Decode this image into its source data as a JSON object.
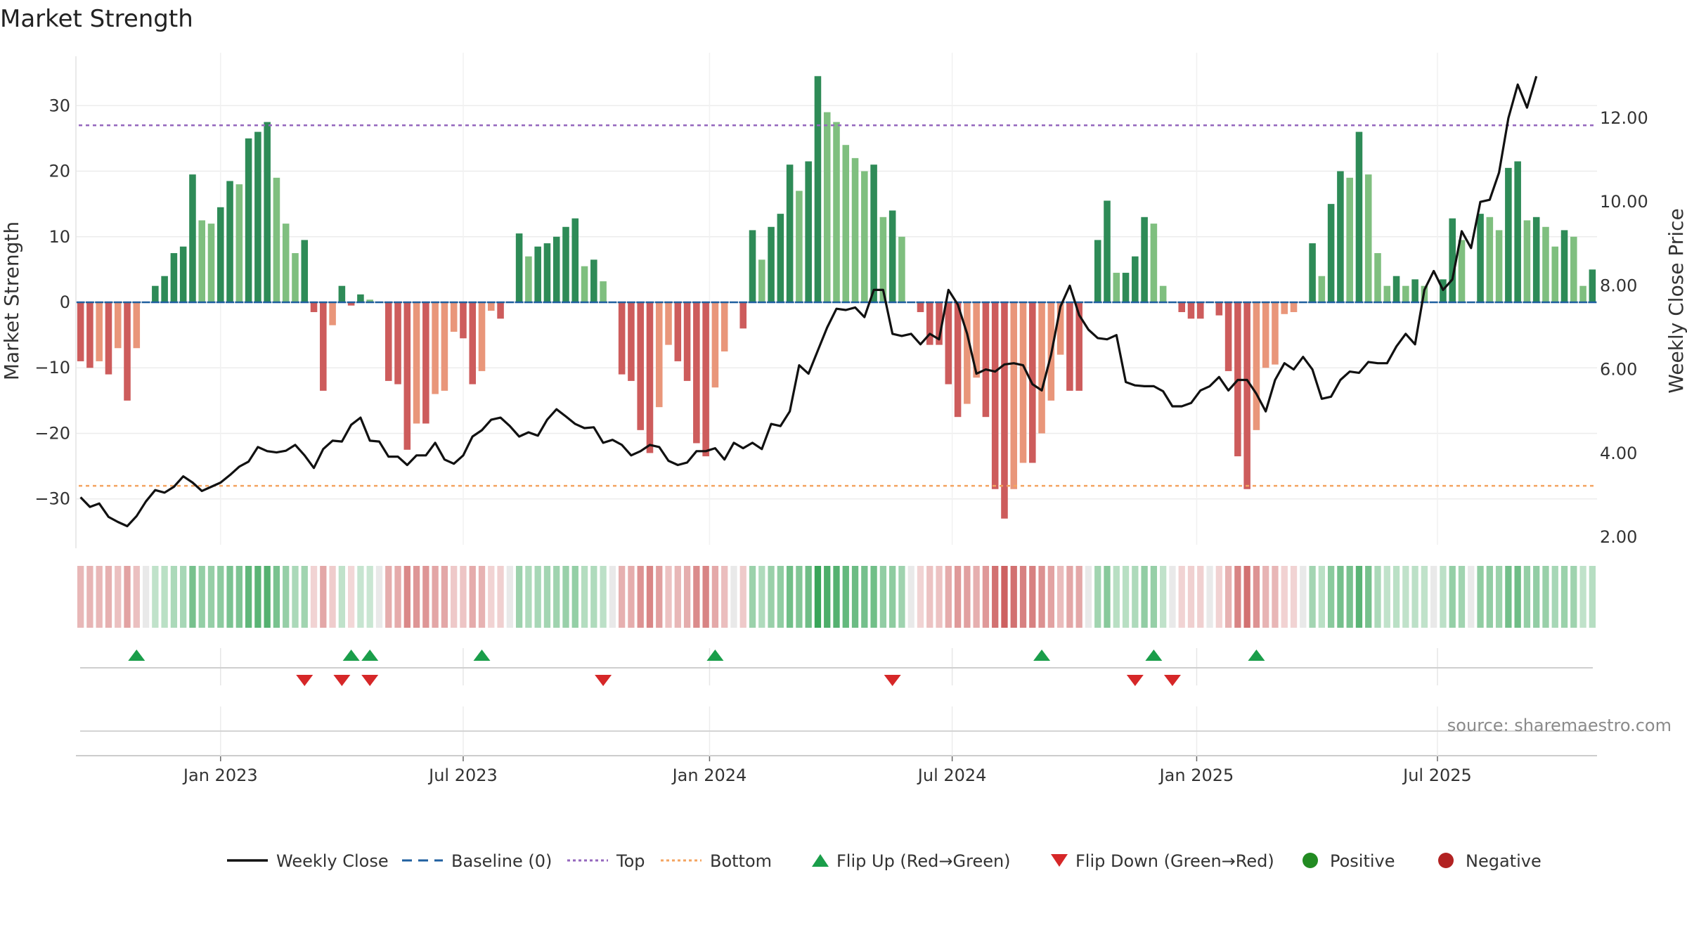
{
  "chart_data": {
    "type": "bar",
    "title": "Market Strength",
    "ylabel_left": "Market Strength",
    "ylabel_right": "Weekly Close Price",
    "y_left_range": [
      -37,
      37
    ],
    "y_left_ticks": [
      30,
      20,
      10,
      0,
      -10,
      -20,
      -30
    ],
    "y_left_tick_labels": [
      "30",
      "20",
      "10",
      "0",
      "−10",
      "−20",
      "−30"
    ],
    "y_right_range": [
      2.0,
      13.5
    ],
    "y_right_ticks": [
      12,
      10,
      8,
      6,
      4,
      2
    ],
    "y_right_tick_labels": [
      "12.00",
      "10.00",
      "8.00",
      "6.00",
      "4.00",
      "2.00"
    ],
    "x_ticks": [
      "Jan 2023",
      "Jul 2023",
      "Jan 2024",
      "Jul 2024",
      "Jan 2025",
      "Jul 2025"
    ],
    "x_tick_weeks": [
      15,
      41,
      67.4,
      93.4,
      119.6,
      145.4
    ],
    "top_threshold": 27,
    "bottom_threshold": -28,
    "strength": [
      -9,
      -10,
      -9,
      -11,
      -7,
      -15,
      -7,
      0,
      2.5,
      4,
      7.5,
      8.5,
      19.5,
      12.5,
      12,
      14.5,
      18.5,
      18,
      25,
      26,
      27.5,
      19,
      12,
      7.5,
      9.5,
      -1.5,
      -13.5,
      -3.5,
      2.5,
      -0.5,
      1.2,
      0.4,
      0,
      -12,
      -12.5,
      -22.5,
      -18.5,
      -18.5,
      -14,
      -13.5,
      -4.5,
      -5.5,
      -12.5,
      -10.5,
      -1.3,
      -2.5,
      0,
      10.5,
      7,
      8.5,
      9,
      10,
      11.5,
      12.8,
      5.5,
      6.5,
      3.2,
      0,
      -11,
      -12,
      -19.5,
      -23,
      -16,
      -6.5,
      -9,
      -12,
      -21.5,
      -23.5,
      -13,
      -7.5,
      0,
      -4,
      11,
      6.5,
      11.5,
      13.5,
      21,
      17,
      21.5,
      34.5,
      29,
      27.5,
      24,
      22,
      20,
      21,
      13,
      14,
      10,
      0,
      -1.5,
      -6.5,
      -6.5,
      -12.5,
      -17.5,
      -15.5,
      -11.5,
      -17.5,
      -28.5,
      -33,
      -28.5,
      -24.5,
      -24.5,
      -20,
      -15,
      -8,
      -13.5,
      -13.5,
      0,
      9.5,
      15.5,
      4.5,
      4.5,
      7,
      13,
      12,
      2.5,
      0,
      -1.5,
      -2.5,
      -2.5,
      0,
      -2,
      -10.5,
      -23.5,
      -28.5,
      -19.5,
      -10,
      -9.5,
      -1.8,
      -1.5,
      0,
      9,
      4,
      15,
      20,
      19,
      26,
      19.5,
      7.5,
      2.5,
      4,
      2.5,
      3.5,
      2.5,
      0,
      3.5,
      12.8,
      9.5,
      0,
      13.5,
      13,
      11,
      20.5,
      21.5,
      12.5,
      13,
      11.5,
      8.5,
      11,
      10,
      2.5,
      5
    ],
    "weekly_close": [
      2.95,
      2.72,
      2.8,
      2.48,
      2.36,
      2.26,
      2.5,
      2.85,
      3.12,
      3.06,
      3.2,
      3.45,
      3.3,
      3.1,
      3.2,
      3.3,
      3.48,
      3.68,
      3.8,
      4.15,
      4.05,
      4.02,
      4.06,
      4.2,
      3.95,
      3.65,
      4.1,
      4.3,
      4.28,
      4.68,
      4.85,
      4.3,
      4.28,
      3.92,
      3.92,
      3.72,
      3.95,
      3.95,
      4.25,
      3.85,
      3.75,
      3.95,
      4.4,
      4.55,
      4.8,
      4.85,
      4.65,
      4.4,
      4.5,
      4.42,
      4.8,
      5.05,
      4.88,
      4.7,
      4.6,
      4.62,
      4.25,
      4.32,
      4.2,
      3.95,
      4.05,
      4.2,
      4.15,
      3.82,
      3.72,
      3.78,
      4.05,
      4.05,
      4.12,
      3.85,
      4.25,
      4.12,
      4.25,
      4.1,
      4.7,
      4.65,
      5.0,
      6.1,
      5.9,
      6.45,
      7.0,
      7.45,
      7.42,
      7.48,
      7.25,
      7.9,
      7.9,
      6.85,
      6.8,
      6.85,
      6.6,
      6.85,
      6.72,
      7.9,
      7.55,
      6.85,
      5.9,
      6.0,
      5.95,
      6.12,
      6.15,
      6.1,
      5.65,
      5.5,
      6.35,
      7.5,
      8.0,
      7.3,
      6.95,
      6.75,
      6.72,
      6.82,
      5.7,
      5.62,
      5.6,
      5.6,
      5.48,
      5.12,
      5.12,
      5.2,
      5.5,
      5.6,
      5.82,
      5.5,
      5.75,
      5.75,
      5.42,
      5.0,
      5.75,
      6.15,
      6.0,
      6.3,
      6.0,
      5.3,
      5.35,
      5.75,
      5.95,
      5.92,
      6.18,
      6.15,
      6.15,
      6.55,
      6.85,
      6.6,
      7.9,
      8.35,
      7.9,
      8.15,
      9.3,
      8.9,
      10.0,
      10.05,
      10.7,
      12.0,
      12.8,
      12.25,
      13.0
    ],
    "flip_up_weeks": [
      6,
      29,
      31,
      43,
      68,
      103,
      115,
      126
    ],
    "flip_down_weeks": [
      24,
      28,
      31,
      56,
      87,
      113,
      117
    ],
    "legend": [
      "Weekly Close",
      "Baseline (0)",
      "Top",
      "Bottom",
      "Flip Up (Red→Green)",
      "Flip Down (Green→Red)",
      "Positive",
      "Negative"
    ],
    "legend_position": "bottom-center",
    "source": "source: sharemaestro.com",
    "colors": {
      "positive_strong": "#2e8b57",
      "positive_light": "#7fbf7f",
      "negative_strong": "#cd5c5c",
      "negative_light": "#e9967a",
      "price_line": "#111111",
      "baseline": "#1f5f9f",
      "top_line": "#9467bd",
      "bottom_line": "#f4a460",
      "flip_up": "#1a9e4a",
      "flip_down": "#d62728",
      "positive_marker": "#228b22",
      "negative_marker": "#b22222"
    }
  }
}
